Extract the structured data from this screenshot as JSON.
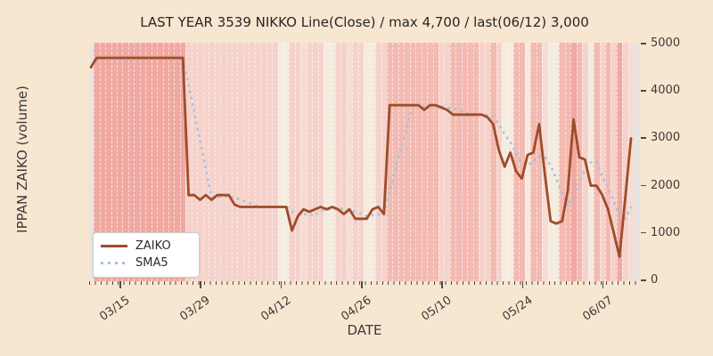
{
  "figure": {
    "title": "LAST YEAR 3539 NIKKO Line(Close) / max 4,700 / last(06/12) 3,000",
    "xlabel": "DATE",
    "ylabel": "IPPAN ZAIKO (volume)",
    "legend": {
      "items": [
        {
          "label": "ZAIKO"
        },
        {
          "label": "SMA5"
        }
      ],
      "position": "lower-left"
    }
  },
  "colors": {
    "figure_background": "#f8e7d0",
    "plot_background": "#e7e5e2",
    "zaiko_line": "#9f4c2a",
    "sma5_line": "#a3c3de",
    "tick_color": "#4a4a4a",
    "band_palette": [
      "#f5ebdf",
      "#f6ddd4",
      "#f5d2cb",
      "#f3bab1",
      "#f0a9a1"
    ]
  },
  "chart_data": {
    "type": "line",
    "title": "LAST YEAR 3539 NIKKO Line(Close) / max 4,700 / last(06/12) 3,000",
    "xlabel": "DATE",
    "ylabel": "IPPAN ZAIKO (volume)",
    "x_unit": "daily, day 0 = 03/10, day 94 = 06/12",
    "x_tick_days": [
      5,
      19,
      33,
      47,
      61,
      75,
      89
    ],
    "x_tick_labels": [
      "03/15",
      "03/29",
      "04/12",
      "04/26",
      "05/10",
      "05/24",
      "06/07"
    ],
    "y_ticks": [
      0,
      1000,
      2000,
      3000,
      4000,
      5000
    ],
    "y_tick_labels": [
      "0",
      "1000",
      "2000",
      "3000",
      "4000",
      "5000"
    ],
    "ylim": [
      0,
      5000
    ],
    "grid": "vertical white dashed lines, one per day",
    "legend_position": "lower-left",
    "annotations": {
      "max": "4,700",
      "last_date": "06/12",
      "last_value": "3,000"
    },
    "series": [
      {
        "name": "ZAIKO",
        "style": "solid",
        "color": "#9f4c2a",
        "values": [
          4500,
          4700,
          4700,
          4700,
          4700,
          4700,
          4700,
          4700,
          4700,
          4700,
          4700,
          4700,
          4700,
          4700,
          4700,
          4700,
          4700,
          1800,
          1800,
          1700,
          1800,
          1700,
          1800,
          1800,
          1800,
          1600,
          1550,
          1550,
          1550,
          1550,
          1550,
          1550,
          1550,
          1550,
          1550,
          1050,
          1350,
          1500,
          1450,
          1500,
          1550,
          1500,
          1550,
          1500,
          1400,
          1500,
          1300,
          1300,
          1300,
          1500,
          1550,
          1400,
          3700,
          3700,
          3700,
          3700,
          3700,
          3700,
          3600,
          3700,
          3700,
          3650,
          3600,
          3500,
          3500,
          3500,
          3500,
          3500,
          3500,
          3450,
          3300,
          2750,
          2400,
          2700,
          2300,
          2150,
          2650,
          2700,
          3300,
          2250,
          1250,
          1200,
          1250,
          1900,
          3400,
          2600,
          2550,
          2000,
          2000,
          1800,
          1500,
          1000,
          500,
          1750,
          3000
        ]
      },
      {
        "name": "SMA5",
        "style": "dotted",
        "color": "#a3c3de",
        "derived": "5-day simple moving average of ZAIKO (computed from ZAIKO values)"
      }
    ],
    "background_bands": {
      "description": "one vertical band per day, color intensity level 0(cream)..4(dark pink)",
      "levels": [
        4,
        4,
        4,
        4,
        4,
        4,
        4,
        4,
        4,
        4,
        4,
        4,
        4,
        4,
        4,
        4,
        4,
        2,
        2,
        2,
        2,
        2,
        2,
        2,
        2,
        2,
        2,
        2,
        2,
        2,
        2,
        2,
        2,
        0,
        0,
        2,
        2,
        1,
        2,
        2,
        2,
        0,
        0,
        2,
        2,
        1,
        2,
        2,
        0,
        0,
        2,
        2,
        3,
        3,
        3,
        3,
        3,
        3,
        3,
        3,
        3,
        2,
        2,
        3,
        3,
        3,
        3,
        3,
        2,
        2,
        3,
        2,
        0,
        0,
        3,
        3,
        0,
        3,
        3,
        1,
        0,
        0,
        3,
        3,
        4,
        3,
        2,
        0,
        3,
        2,
        3,
        2,
        4,
        2,
        1
      ]
    }
  }
}
